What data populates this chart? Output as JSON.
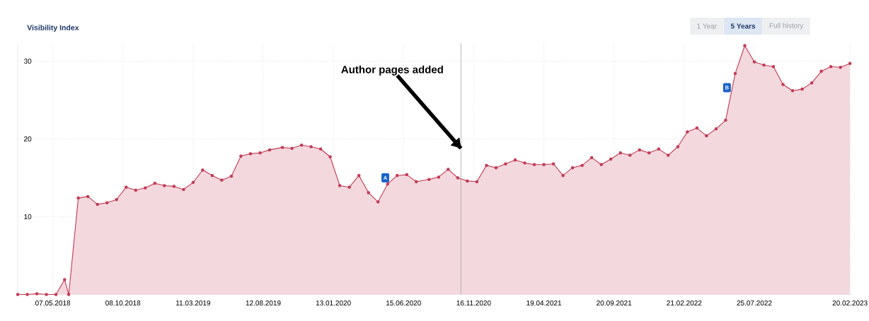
{
  "chart_data": {
    "type": "area",
    "title": "Visibility Index",
    "x": [
      "2018-02-19",
      "2018-03-12",
      "2018-04-02",
      "2018-04-23",
      "2018-05-14",
      "2018-06-02",
      "2018-06-11",
      "2018-07-02",
      "2018-07-23",
      "2018-08-13",
      "2018-09-03",
      "2018-09-24",
      "2018-10-15",
      "2018-11-05",
      "2018-11-26",
      "2018-12-17",
      "2019-01-07",
      "2019-01-28",
      "2019-02-18",
      "2019-03-11",
      "2019-04-01",
      "2019-04-22",
      "2019-05-13",
      "2019-06-03",
      "2019-06-24",
      "2019-07-15",
      "2019-08-05",
      "2019-08-26",
      "2019-09-23",
      "2019-10-14",
      "2019-11-04",
      "2019-11-25",
      "2019-12-16",
      "2020-01-06",
      "2020-01-27",
      "2020-02-17",
      "2020-03-09",
      "2020-03-30",
      "2020-04-20",
      "2020-05-11",
      "2020-06-01",
      "2020-06-22",
      "2020-07-13",
      "2020-08-10",
      "2020-08-31",
      "2020-09-21",
      "2020-10-12",
      "2020-11-02",
      "2020-11-23",
      "2020-12-14",
      "2021-01-04",
      "2021-01-25",
      "2021-02-15",
      "2021-03-08",
      "2021-03-29",
      "2021-04-19",
      "2021-05-10",
      "2021-05-31",
      "2021-06-21",
      "2021-07-12",
      "2021-08-02",
      "2021-08-23",
      "2021-09-13",
      "2021-10-04",
      "2021-10-25",
      "2021-11-15",
      "2021-12-06",
      "2021-12-27",
      "2022-01-17",
      "2022-02-07",
      "2022-02-28",
      "2022-03-21",
      "2022-04-11",
      "2022-05-02",
      "2022-05-23",
      "2022-06-13",
      "2022-07-04",
      "2022-07-25",
      "2022-08-15",
      "2022-09-05",
      "2022-09-26",
      "2022-10-17",
      "2022-11-07",
      "2022-11-28",
      "2022-12-19",
      "2023-01-09",
      "2023-01-30",
      "2023-02-20"
    ],
    "values": [
      0,
      0,
      0.1,
      0,
      0,
      1.9,
      0,
      12.4,
      12.6,
      11.6,
      11.8,
      12.2,
      13.8,
      13.4,
      13.7,
      14.3,
      14.0,
      13.9,
      13.5,
      14.4,
      16.0,
      15.3,
      14.7,
      15.2,
      17.8,
      18.1,
      18.2,
      18.6,
      18.9,
      18.8,
      19.2,
      19.0,
      18.7,
      17.7,
      14.0,
      13.8,
      15.3,
      13.1,
      11.9,
      14.2,
      15.3,
      15.4,
      14.5,
      14.8,
      15.1,
      16.1,
      15.0,
      14.6,
      14.5,
      16.6,
      16.3,
      16.8,
      17.3,
      16.9,
      16.7,
      16.7,
      16.8,
      15.3,
      16.3,
      16.6,
      17.6,
      16.7,
      17.4,
      18.2,
      17.9,
      18.6,
      18.2,
      18.7,
      17.9,
      19.0,
      20.9,
      21.4,
      20.4,
      21.3,
      22.4,
      28.4,
      32.0,
      29.9,
      29.5,
      29.3,
      27.0,
      26.2,
      26.4,
      27.2,
      28.7,
      29.3,
      29.2,
      29.7
    ],
    "color": "#c23b55",
    "marker": "circle",
    "xlim": [
      "2018-02-19",
      "2023-02-26"
    ],
    "ylim": [
      0,
      32.3
    ],
    "xticks": [
      {
        "value": "2018-05-07",
        "label": "07.05.2018"
      },
      {
        "value": "2018-10-08",
        "label": "08.10.2018"
      },
      {
        "value": "2019-03-11",
        "label": "11.03.2019"
      },
      {
        "value": "2019-08-12",
        "label": "12.08.2019"
      },
      {
        "value": "2020-01-13",
        "label": "13.01.2020"
      },
      {
        "value": "2020-06-15",
        "label": "15.06.2020"
      },
      {
        "value": "2020-11-16",
        "label": "16.11.2020"
      },
      {
        "value": "2021-04-19",
        "label": "19.04.2021"
      },
      {
        "value": "2021-09-20",
        "label": "20.09.2021"
      },
      {
        "value": "2022-02-21",
        "label": "21.02.2022"
      },
      {
        "value": "2022-07-25",
        "label": "25.07.2022"
      },
      {
        "value": "2023-02-20",
        "label": "20.02.2023"
      }
    ],
    "yticks": [
      10,
      20,
      30
    ],
    "grid": true,
    "ref_lines": [
      {
        "axis": "x",
        "value": "2020-10-19",
        "color": "#a6a6a6"
      }
    ],
    "annotations": [
      {
        "text": "Author pages added",
        "x": "2020-10-19",
        "y": 18.8
      },
      {
        "text": "A",
        "x": "2020-05-06",
        "y": 15.0
      },
      {
        "text": "B",
        "x": "2022-05-26",
        "y": 26.6
      },
      "1 Year",
      "5 Years",
      "Full history"
    ]
  }
}
